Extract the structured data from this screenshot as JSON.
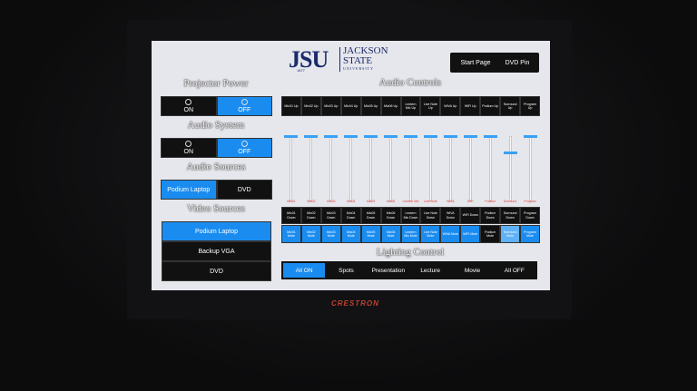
{
  "header": {
    "logo": "JSU",
    "logo_year": "1877",
    "university_lines": [
      "JACKSON",
      "STATE",
      "UNIVERSITY"
    ],
    "buttons": [
      "Start Page",
      "DVD Pin"
    ]
  },
  "left": {
    "sections": [
      {
        "title": "Projector Power",
        "buttons": [
          {
            "label": "ON",
            "selected": false,
            "icon": true
          },
          {
            "label": "OFF",
            "selected": true,
            "icon": true
          }
        ]
      },
      {
        "title": "Audio System",
        "buttons": [
          {
            "label": "ON",
            "selected": false,
            "icon": true
          },
          {
            "label": "OFF",
            "selected": true,
            "icon": true
          }
        ]
      },
      {
        "title": "Audio Sources",
        "buttons": [
          {
            "label": "Podium Laptop",
            "selected": true
          },
          {
            "label": "DVD",
            "selected": false
          }
        ]
      }
    ],
    "video": {
      "title": "Video Sources",
      "buttons": [
        {
          "label": "Podium Laptop",
          "selected": true
        },
        {
          "label": "Backup VGA",
          "selected": false
        },
        {
          "label": "DVD",
          "selected": false
        }
      ]
    }
  },
  "audio": {
    "title": "Audio Controls",
    "level_range": [
      0,
      100
    ],
    "channels": [
      {
        "up": "Mic01 Up",
        "down": "Mic01 Down",
        "mute": "Mic01 Mute",
        "label": "Mic01",
        "level": 100,
        "muted": true
      },
      {
        "up": "Mic02 Up",
        "down": "Mic02 Down",
        "mute": "Mic02 Mute",
        "label": "Mic02",
        "level": 100,
        "muted": true
      },
      {
        "up": "Mic03 Up",
        "down": "Mic03 Down",
        "mute": "Mic03 Mute",
        "label": "Mic03",
        "level": 100,
        "muted": true
      },
      {
        "up": "Mic04 Up",
        "down": "Mic04 Down",
        "mute": "Mic04 Mute",
        "label": "Mic04",
        "level": 100,
        "muted": true
      },
      {
        "up": "Mic05 Up",
        "down": "Mic05 Down",
        "mute": "Mic05 Mute",
        "label": "Mic05",
        "level": 100,
        "muted": true
      },
      {
        "up": "Mic06 Up",
        "down": "Mic06 Down",
        "mute": "Mic06 Mute",
        "label": "Mic06",
        "level": 100,
        "muted": true
      },
      {
        "up": "Lectern Mic Up",
        "down": "Lectern Mic Down",
        "mute": "Lectern Mic Mute",
        "label": "Lectern Mic",
        "level": 100,
        "muted": true
      },
      {
        "up": "Live Note Up",
        "down": "Live Note Down",
        "mute": "Live Note Mute",
        "label": "Live Note",
        "level": 100,
        "muted": true
      },
      {
        "up": "WiVA Up",
        "down": "WiVA Down",
        "mute": "WiVA Mute",
        "label": "WiVA",
        "level": 100,
        "muted": true
      },
      {
        "up": "WiFi Up",
        "down": "WiFi Down",
        "mute": "WiFi Mute",
        "label": "WiFi",
        "level": 100,
        "muted": true
      },
      {
        "up": "Podium Up",
        "down": "Podium Down",
        "mute": "Podium Mute",
        "label": "Podium",
        "level": 100,
        "muted": false
      },
      {
        "up": "Surround Up",
        "down": "Surround Down",
        "mute": "Surround Mute",
        "label": "Surround",
        "level": 75,
        "muted": true
      },
      {
        "up": "Program Up",
        "down": "Program Down",
        "mute": "Program Mute",
        "label": "Program",
        "level": 100,
        "muted": true
      }
    ]
  },
  "lighting": {
    "title": "Lighting Control",
    "buttons": [
      {
        "label": "All ON",
        "selected": true
      },
      {
        "label": "Spots",
        "selected": false
      },
      {
        "label": "Presentation",
        "selected": false
      },
      {
        "label": "Lecture",
        "selected": false
      },
      {
        "label": "Movie",
        "selected": false
      },
      {
        "label": "All OFF",
        "selected": false
      }
    ]
  },
  "brand": "CRESTRON"
}
